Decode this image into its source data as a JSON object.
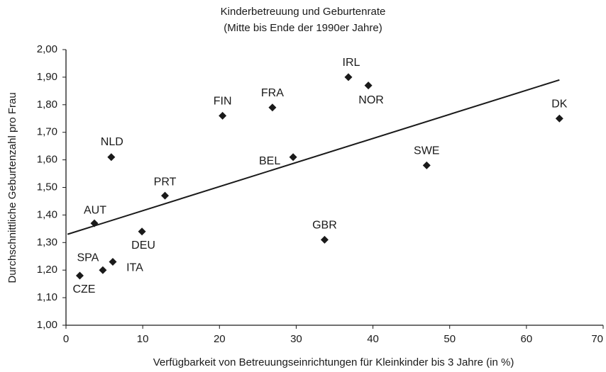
{
  "chart_data": {
    "type": "scatter",
    "title": "Kinderbetreuung und Geburtenrate",
    "subtitle": "(Mitte bis Ende der 1990er Jahre)",
    "x_label": "Verfügbarkeit von Betreuungseinrichtungen für Kleinkinder bis 3 Jahre (in %)",
    "y_label": "Durchschnittliche Geburtenzahl pro Frau",
    "labels": [
      "CZE",
      "SPA",
      "ITA",
      "AUT",
      "DEU",
      "NLD",
      "PRT",
      "FIN",
      "FRA",
      "BEL",
      "GBR",
      "IRL",
      "NOR",
      "SWE",
      "DK"
    ],
    "x": [
      1.8,
      4.8,
      6.1,
      3.7,
      9.9,
      5.9,
      12.9,
      20.4,
      26.9,
      29.6,
      33.7,
      36.8,
      39.4,
      47.0,
      64.3
    ],
    "values": [
      1.18,
      1.2,
      1.23,
      1.37,
      1.34,
      1.61,
      1.47,
      1.76,
      1.79,
      1.61,
      1.31,
      1.9,
      1.87,
      1.58,
      1.75
    ],
    "color": "#1a1a1a",
    "trendline": {
      "x": [
        0.2,
        64.3
      ],
      "values": [
        1.33,
        1.89
      ]
    },
    "xlim": [
      0,
      70
    ],
    "xticks": [
      0,
      10,
      20,
      30,
      40,
      50,
      60,
      70
    ],
    "ylim": [
      1,
      2
    ],
    "yticks": [
      {
        "value": 1,
        "label": "1,00"
      },
      {
        "value": 1.1,
        "label": "1,10"
      },
      {
        "value": 1.2,
        "label": "1,20"
      },
      {
        "value": 1.3,
        "label": "1,30"
      },
      {
        "value": 1.4,
        "label": "1,40"
      },
      {
        "value": 1.5,
        "label": "1,50"
      },
      {
        "value": 1.6,
        "label": "1,60"
      },
      {
        "value": 1.7,
        "label": "1,70"
      },
      {
        "value": 1.8,
        "label": "1,80"
      },
      {
        "value": 1.9,
        "label": "1,90"
      },
      {
        "value": 2,
        "label": "2,00"
      }
    ],
    "grid": false
  }
}
